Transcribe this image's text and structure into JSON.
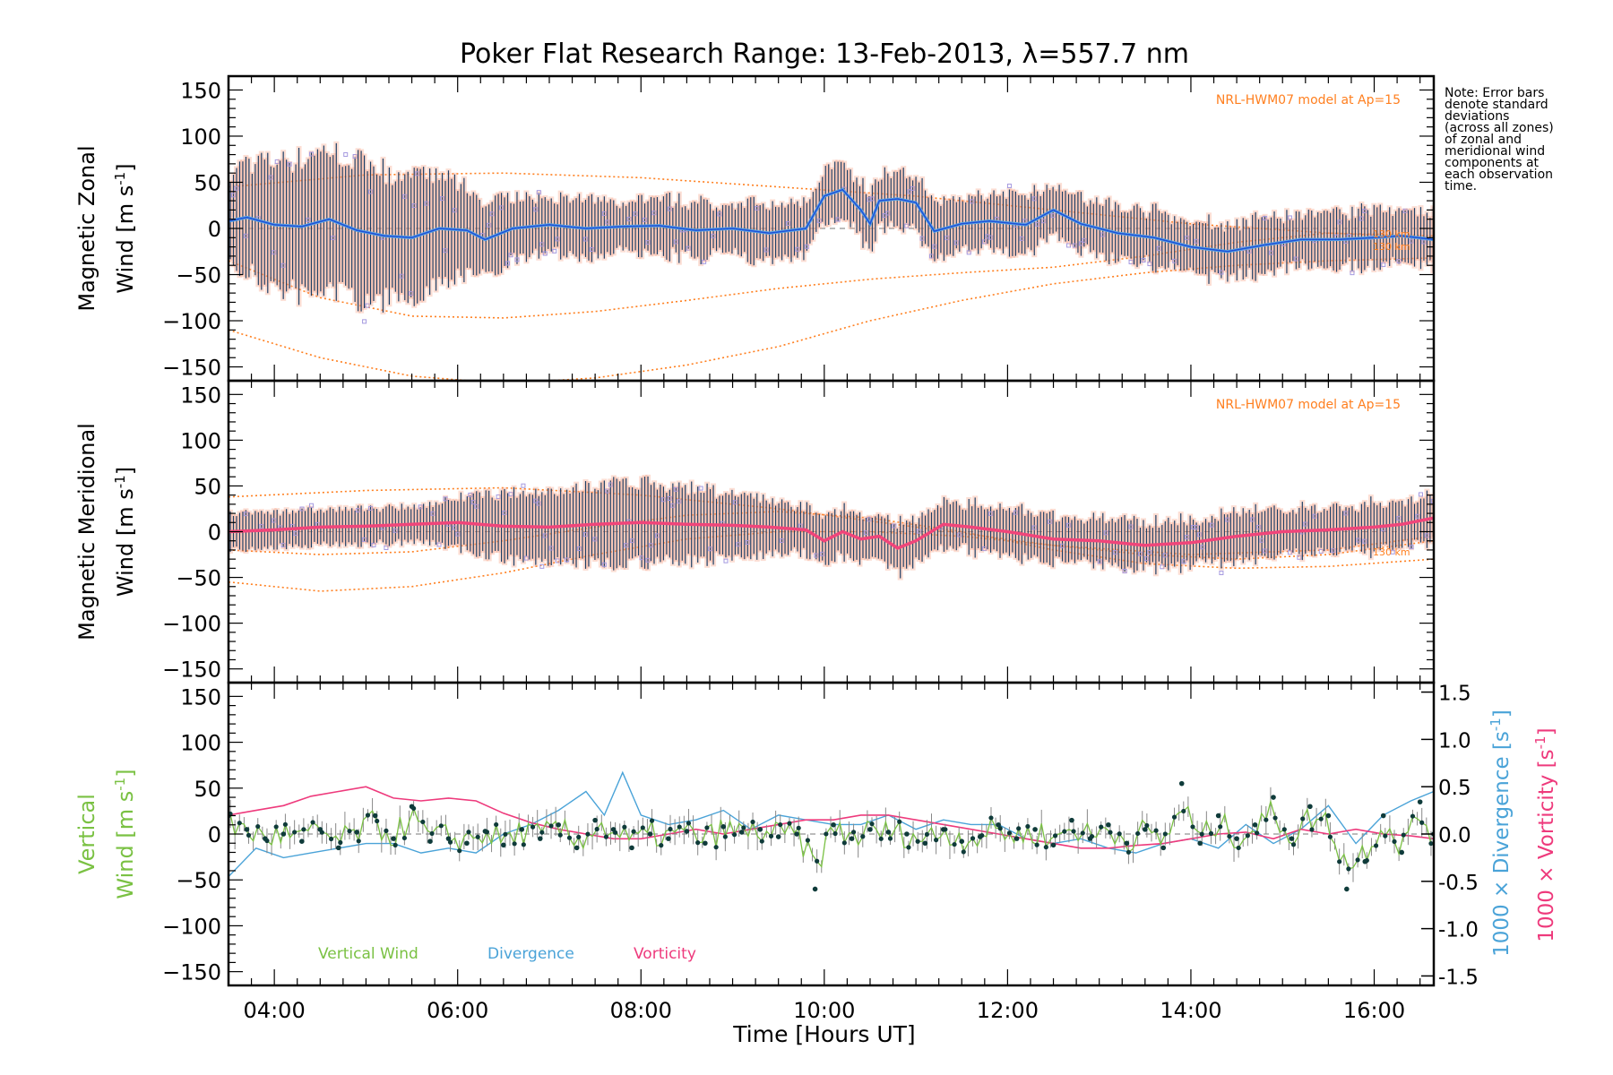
{
  "chart_data": {
    "type": "line",
    "title": "Poker Flat Research Range: 13-Feb-2013, λ=557.7 nm",
    "xlabel": "Time [Hours UT]",
    "x_range": [
      3.5,
      16.65
    ],
    "x_ticks": [
      {
        "value": 4,
        "label": "04:00"
      },
      {
        "value": 6,
        "label": "06:00"
      },
      {
        "value": 8,
        "label": "08:00"
      },
      {
        "value": 10,
        "label": "10:00"
      },
      {
        "value": 12,
        "label": "12:00"
      },
      {
        "value": 14,
        "label": "14:00"
      },
      {
        "value": 16,
        "label": "16:00"
      }
    ],
    "note_lines": [
      "Note: Error bars",
      "denote standard",
      "deviations",
      "(across all zones)",
      "of zonal and",
      "meridional wind",
      "components at",
      "each observation",
      "time."
    ],
    "colors": {
      "zonal_mean": "#1f4fd6",
      "zonal_mean_light": "#5aa6e6",
      "meridional_mean": "#f0457a",
      "error_bar": "#1c3f66",
      "zone_points": "#f5a084",
      "outlier_points": "#a59ae0",
      "model": "#ff7f1f",
      "vertical": "#7ac143",
      "divergence": "#4aa3d8",
      "vorticity": "#ee3a7c",
      "vertical_point": "#0f3b3a",
      "vertical_errbar": "#888888"
    },
    "panels": [
      {
        "name": "zonal",
        "ylabel_top": "Magnetic Zonal",
        "ylabel_bottom": "Wind",
        "unit": "m s",
        "ylim": [
          -165,
          165
        ],
        "yticks": [
          150,
          100,
          50,
          0,
          -50,
          -100,
          -150
        ],
        "model_label": "NRL-HWM07 model at Ap=15",
        "alt_labels": [
          "130 km",
          "130 km"
        ],
        "series": [
          {
            "name": "Zonal mean wind",
            "x": [
              3.5,
              3.7,
              4.0,
              4.3,
              4.6,
              4.9,
              5.2,
              5.5,
              5.8,
              6.1,
              6.3,
              6.6,
              7.0,
              7.4,
              7.8,
              8.2,
              8.6,
              9.0,
              9.4,
              9.8,
              10.0,
              10.2,
              10.4,
              10.5,
              10.6,
              10.8,
              11.0,
              11.2,
              11.5,
              11.8,
              12.2,
              12.5,
              12.8,
              13.2,
              13.6,
              14.0,
              14.4,
              14.8,
              15.2,
              15.6,
              16.0,
              16.3,
              16.65
            ],
            "y": [
              8,
              12,
              4,
              2,
              10,
              -2,
              -8,
              -10,
              0,
              -2,
              -12,
              0,
              4,
              0,
              2,
              3,
              -2,
              0,
              -5,
              0,
              35,
              42,
              20,
              5,
              30,
              32,
              28,
              -3,
              5,
              8,
              4,
              20,
              5,
              -5,
              -10,
              -20,
              -25,
              -18,
              -12,
              -12,
              -10,
              -8,
              -12
            ]
          },
          {
            "name": "Model a",
            "x": [
              3.5,
              4.5,
              5.5,
              6.5,
              7.5,
              8.5,
              9.5,
              10.5,
              11.5,
              12.5,
              13.5,
              14.5,
              15.5,
              16.65
            ],
            "y": [
              -110,
              -140,
              -160,
              -168,
              -162,
              -148,
              -128,
              -100,
              -78,
              -60,
              -48,
              -40,
              -35,
              -32
            ]
          },
          {
            "name": "Model b",
            "x": [
              3.5,
              4.5,
              5.5,
              6.5,
              7.5,
              8.5,
              9.5,
              10.5,
              11.5,
              12.5,
              13.5,
              14.5,
              15.5,
              16.65
            ],
            "y": [
              -35,
              -75,
              -95,
              -97,
              -90,
              -78,
              -65,
              -55,
              -48,
              -42,
              -30,
              -15,
              -5,
              -10
            ]
          },
          {
            "name": "Model c",
            "x": [
              3.5,
              5.0,
              6.5,
              8.0,
              9.5,
              11.0,
              12.5,
              14.0,
              15.5,
              16.65
            ],
            "y": [
              45,
              58,
              60,
              55,
              45,
              35,
              20,
              5,
              -5,
              -8
            ]
          }
        ]
      },
      {
        "name": "meridional",
        "ylabel_top": "Magnetic Meridional",
        "ylabel_bottom": "Wind",
        "unit": "m s",
        "ylim": [
          -165,
          165
        ],
        "yticks": [
          150,
          100,
          50,
          0,
          -50,
          -100,
          -150
        ],
        "model_label": "NRL-HWM07 model at Ap=15",
        "alt_labels": [
          "130 km"
        ],
        "series": [
          {
            "name": "Meridional mean wind",
            "x": [
              3.5,
              4.0,
              4.5,
              5.0,
              5.5,
              6.0,
              6.5,
              7.0,
              7.5,
              8.0,
              8.5,
              9.0,
              9.4,
              9.8,
              10.0,
              10.2,
              10.4,
              10.6,
              10.8,
              11.0,
              11.3,
              11.6,
              12.0,
              12.5,
              13.0,
              13.5,
              14.0,
              14.5,
              15.0,
              15.5,
              16.0,
              16.3,
              16.65
            ],
            "y": [
              0,
              2,
              5,
              6,
              8,
              10,
              6,
              5,
              8,
              10,
              8,
              7,
              5,
              2,
              -10,
              0,
              -8,
              -5,
              -18,
              -10,
              8,
              5,
              0,
              -8,
              -10,
              -15,
              -12,
              -5,
              0,
              2,
              5,
              8,
              15
            ]
          },
          {
            "name": "Model a",
            "x": [
              3.5,
              4.5,
              5.5,
              6.5,
              7.5,
              8.5,
              9.5,
              10.5,
              11.5,
              12.5,
              13.5,
              14.5,
              15.5,
              16.65
            ],
            "y": [
              -55,
              -65,
              -60,
              -45,
              -25,
              -8,
              0,
              0,
              -5,
              -15,
              -25,
              -30,
              -25,
              -10
            ]
          },
          {
            "name": "Model b",
            "x": [
              3.5,
              4.5,
              5.5,
              6.5,
              7.5,
              8.5,
              9.5,
              10.5,
              11.5,
              12.5,
              13.5,
              14.5,
              15.5,
              16.65
            ],
            "y": [
              -20,
              -25,
              -22,
              -10,
              5,
              18,
              22,
              15,
              0,
              -20,
              -35,
              -40,
              -38,
              -30
            ]
          },
          {
            "name": "Model c",
            "x": [
              3.5,
              5.0,
              6.5,
              8.0,
              9.5,
              11.0,
              12.5,
              14.0,
              15.5,
              16.65
            ],
            "y": [
              38,
              45,
              48,
              40,
              25,
              5,
              -15,
              -25,
              -20,
              -5
            ]
          }
        ]
      },
      {
        "name": "vertical",
        "ylabel_top": "Vertical",
        "ylabel_bottom": "Wind",
        "unit": "m s",
        "ylim": [
          -165,
          165
        ],
        "yticks": [
          150,
          100,
          50,
          0,
          -50,
          -100,
          -150
        ],
        "right_ylim": [
          -1.6,
          1.6
        ],
        "right_yticks": [
          1.5,
          1.0,
          0.5,
          0.0,
          -0.5,
          -1.0,
          -1.5
        ],
        "right_ylabel_divergence": "1000 × Divergence",
        "right_ylabel_vorticity": "1000 × Vorticity",
        "right_unit": "s",
        "legend": [
          "Vertical Wind",
          "Divergence",
          "Vorticity"
        ],
        "series": [
          {
            "name": "Vertical Wind",
            "x": [
              3.5,
              3.7,
              3.9,
              4.1,
              4.3,
              4.5,
              4.7,
              4.9,
              5.1,
              5.3,
              5.5,
              5.7,
              5.9,
              6.1,
              6.3,
              6.5,
              6.7,
              6.9,
              7.1,
              7.3,
              7.5,
              7.7,
              7.9,
              8.1,
              8.3,
              8.5,
              8.7,
              8.9,
              9.1,
              9.3,
              9.5,
              9.7,
              9.9,
              10.1,
              10.3,
              10.5,
              10.7,
              10.9,
              11.1,
              11.3,
              11.5,
              11.7,
              11.9,
              12.1,
              12.3,
              12.5,
              12.7,
              12.9,
              13.1,
              13.3,
              13.5,
              13.7,
              13.9,
              14.1,
              14.3,
              14.5,
              14.7,
              14.9,
              15.1,
              15.3,
              15.5,
              15.7,
              15.9,
              16.1,
              16.3,
              16.5,
              16.65
            ],
            "y": [
              20,
              5,
              -5,
              0,
              -8,
              5,
              -15,
              2,
              20,
              -5,
              30,
              -8,
              -5,
              -10,
              3,
              -12,
              5,
              -5,
              10,
              -15,
              15,
              5,
              -15,
              0,
              -5,
              3,
              -10,
              8,
              2,
              5,
              -3,
              0,
              -60,
              10,
              -5,
              5,
              2,
              0,
              -10,
              5,
              -8,
              -3,
              10,
              -5,
              5,
              -12,
              15,
              -5,
              10,
              -10,
              5,
              -15,
              55,
              -10,
              20,
              -5,
              10,
              40,
              -5,
              30,
              20,
              -60,
              -30,
              20,
              -20,
              35,
              0
            ]
          },
          {
            "name": "Divergence (x1000)",
            "x": [
              3.5,
              3.8,
              4.1,
              4.4,
              4.7,
              5.0,
              5.3,
              5.6,
              5.9,
              6.2,
              6.5,
              6.8,
              7.1,
              7.4,
              7.6,
              7.8,
              8.0,
              8.3,
              8.6,
              8.9,
              9.2,
              9.5,
              9.8,
              10.1,
              10.4,
              10.7,
              11.0,
              11.3,
              11.6,
              11.9,
              12.2,
              12.5,
              12.8,
              13.1,
              13.4,
              13.7,
              14.0,
              14.3,
              14.6,
              14.9,
              15.2,
              15.5,
              15.8,
              16.1,
              16.4,
              16.65
            ],
            "y": [
              -0.45,
              -0.15,
              -0.25,
              -0.2,
              -0.15,
              -0.1,
              -0.1,
              -0.2,
              -0.15,
              -0.2,
              0.0,
              0.1,
              0.25,
              0.45,
              0.2,
              0.65,
              0.2,
              0.1,
              0.15,
              0.25,
              0.05,
              0.2,
              0.15,
              0.1,
              0.1,
              0.2,
              0.05,
              0.15,
              0.1,
              0.1,
              -0.05,
              -0.1,
              -0.05,
              -0.15,
              -0.2,
              -0.1,
              -0.05,
              -0.15,
              0.1,
              -0.1,
              0.05,
              0.3,
              -0.1,
              0.2,
              0.35,
              0.45
            ]
          },
          {
            "name": "Vorticity (x1000)",
            "x": [
              3.5,
              3.8,
              4.1,
              4.4,
              4.7,
              5.0,
              5.3,
              5.6,
              5.9,
              6.2,
              6.5,
              6.8,
              7.1,
              7.4,
              7.7,
              8.0,
              8.3,
              8.6,
              8.9,
              9.2,
              9.5,
              9.8,
              10.1,
              10.4,
              10.7,
              11.0,
              11.3,
              11.6,
              11.9,
              12.2,
              12.5,
              12.8,
              13.1,
              13.4,
              13.7,
              14.0,
              14.3,
              14.6,
              14.9,
              15.2,
              15.5,
              15.8,
              16.1,
              16.4,
              16.65
            ],
            "y": [
              0.2,
              0.25,
              0.3,
              0.4,
              0.45,
              0.5,
              0.38,
              0.35,
              0.38,
              0.35,
              0.22,
              0.12,
              0.05,
              0.0,
              -0.05,
              -0.05,
              0.0,
              0.05,
              0.0,
              0.05,
              0.1,
              0.15,
              0.15,
              0.2,
              0.2,
              0.15,
              0.1,
              0.05,
              0.0,
              -0.05,
              -0.1,
              -0.15,
              -0.15,
              -0.12,
              -0.1,
              -0.05,
              0.0,
              0.02,
              -0.05,
              0.05,
              0.0,
              0.05,
              0.0,
              -0.02,
              -0.05
            ]
          }
        ]
      }
    ]
  }
}
